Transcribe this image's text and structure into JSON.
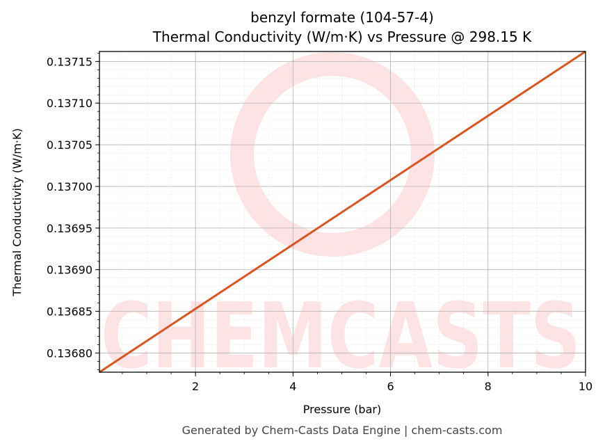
{
  "chart_data": {
    "type": "line",
    "title": "benzyl formate (104-57-4)",
    "subtitle": "Thermal Conductivity (W/m·K) vs Pressure @ 298.15 K",
    "xlabel": "Pressure (bar)",
    "ylabel": "Thermal Conductivity (W/m·K)",
    "xlim": [
      0.03,
      10
    ],
    "ylim": [
      0.136777,
      0.137162
    ],
    "x_ticks": [
      2,
      4,
      6,
      8,
      10
    ],
    "x_tick_labels": [
      "2",
      "4",
      "6",
      "8",
      "10"
    ],
    "y_ticks": [
      0.1368,
      0.13685,
      0.1369,
      0.13695,
      0.137,
      0.13705,
      0.1371,
      0.13715
    ],
    "y_tick_labels": [
      "0.13680",
      "0.13685",
      "0.13690",
      "0.13695",
      "0.13700",
      "0.13705",
      "0.13710",
      "0.13715"
    ],
    "grid": true,
    "series": [
      {
        "color": "#d9541e",
        "x": [
          0.03,
          10
        ],
        "y": [
          0.136777,
          0.137162
        ]
      }
    ]
  },
  "watermark": {
    "text": "CHEMCASTS",
    "color": "#fde3e3"
  },
  "footer": "Generated by Chem-Casts Data Engine | chem-casts.com"
}
